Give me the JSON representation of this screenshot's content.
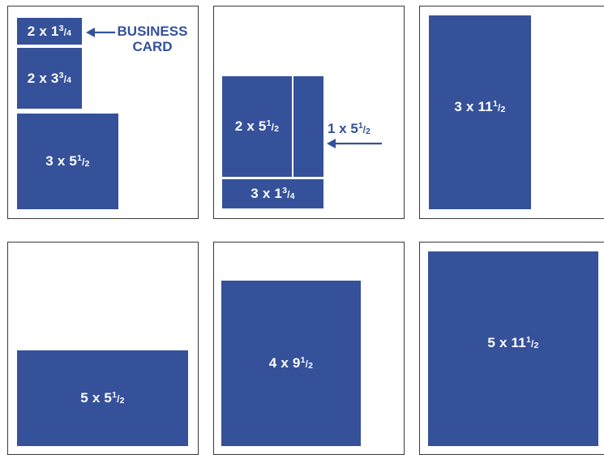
{
  "colors": {
    "ad_fill": "#35519a",
    "panel_border": "#3a3a3a",
    "background": "#ffffff",
    "ad_text": "#ffffff",
    "callout": "#35519a"
  },
  "panels": [
    {
      "ads": [
        {
          "whole": "2 x 1",
          "num": "3",
          "den": "4"
        },
        {
          "whole": "2 x 3",
          "num": "3",
          "den": "4"
        },
        {
          "whole": "3 x 5",
          "num": "1",
          "den": "2"
        }
      ],
      "callout": {
        "line1": "BUSINESS",
        "line2": "CARD",
        "arrow_icon": "arrow-left-icon"
      }
    },
    {
      "ads": [
        {
          "whole": "2 x 5",
          "num": "1",
          "den": "2"
        },
        {
          "whole": "",
          "num": "",
          "den": ""
        },
        {
          "whole": "3 x 1",
          "num": "3",
          "den": "4"
        }
      ],
      "callout": {
        "whole": "1 x 5",
        "num": "1",
        "den": "2",
        "arrow_icon": "arrow-left-icon"
      }
    },
    {
      "ads": [
        {
          "whole": "3 x 11",
          "num": "1",
          "den": "2"
        }
      ]
    },
    {
      "ads": [
        {
          "whole": "5 x 5",
          "num": "1",
          "den": "2"
        }
      ]
    },
    {
      "ads": [
        {
          "whole": "4 x 9",
          "num": "1",
          "den": "2"
        }
      ]
    },
    {
      "ads": [
        {
          "whole": "5 x 11",
          "num": "1",
          "den": "2"
        }
      ]
    }
  ]
}
